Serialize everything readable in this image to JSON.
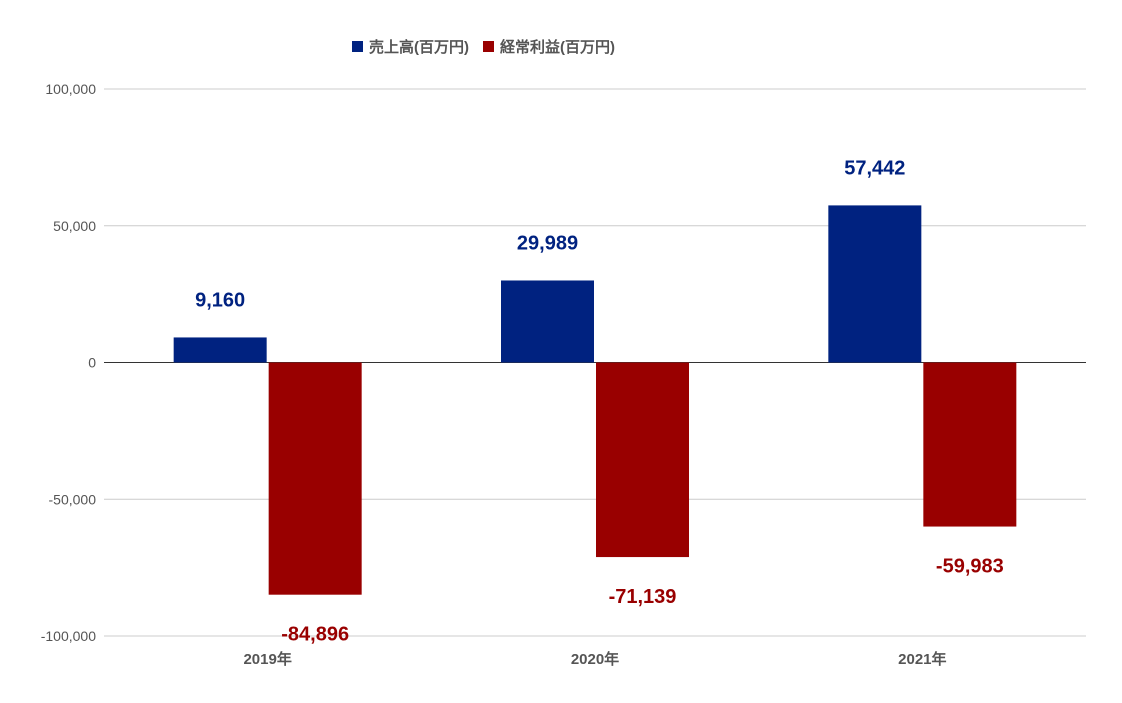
{
  "chart_data": {
    "type": "bar",
    "categories": [
      "2019年",
      "2020年",
      "2021年"
    ],
    "series": [
      {
        "name": "売上高(百万円)",
        "color": "#002280",
        "values": [
          9160,
          29989,
          57442
        ],
        "labels": [
          "9,160",
          "29,989",
          "57,442"
        ]
      },
      {
        "name": "経常利益(百万円)",
        "color": "#990000",
        "values": [
          -84896,
          -71139,
          -59983
        ],
        "labels": [
          "-84,896",
          "-71,139",
          "-59,983"
        ]
      }
    ],
    "ylim": [
      -100000,
      100000
    ],
    "yticks": [
      100000,
      50000,
      0,
      -50000,
      -100000
    ],
    "ytick_labels": [
      "100,000",
      "50,000",
      "0",
      "-50,000",
      "-100,000"
    ],
    "grid": true,
    "legend_position": "top"
  }
}
